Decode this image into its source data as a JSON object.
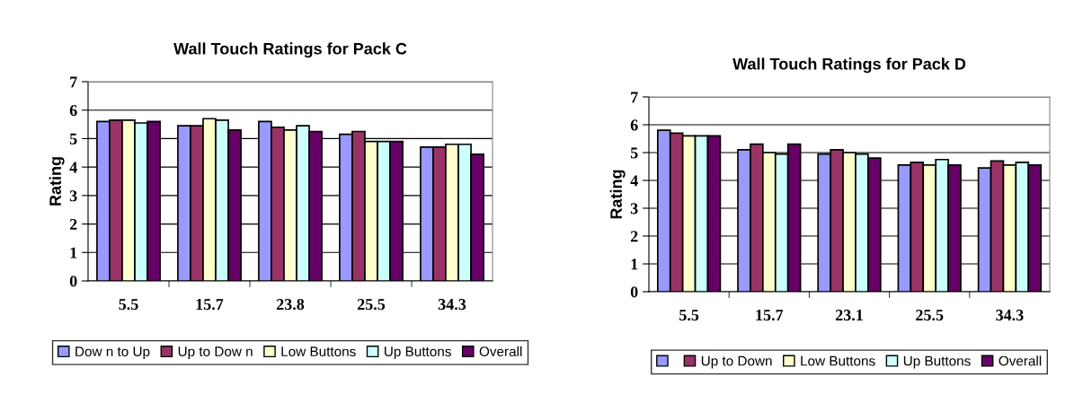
{
  "chart_data": [
    {
      "type": "bar",
      "title": "Wall Touch Ratings for Pack C",
      "ylabel": "Rating",
      "categories": [
        "5.5",
        "15.7",
        "23.8",
        "25.5",
        "34.3"
      ],
      "ylim": [
        0,
        7
      ],
      "yticks": [
        0,
        1,
        2,
        3,
        4,
        5,
        6,
        7
      ],
      "grid": "y",
      "legend": "bottom",
      "series": [
        {
          "name": "Dow n to Up",
          "color": "#9999ff",
          "values": [
            5.6,
            5.45,
            5.6,
            5.15,
            4.7
          ]
        },
        {
          "name": "Up to Dow n",
          "color": "#993366",
          "values": [
            5.65,
            5.45,
            5.4,
            5.25,
            4.7
          ]
        },
        {
          "name": "Low Buttons",
          "color": "#ffffcc",
          "values": [
            5.65,
            5.7,
            5.3,
            4.9,
            4.8
          ]
        },
        {
          "name": "Up Buttons",
          "color": "#ccffff",
          "values": [
            5.55,
            5.65,
            5.45,
            4.9,
            4.8
          ]
        },
        {
          "name": "Overall",
          "color": "#660066",
          "values": [
            5.6,
            5.3,
            5.25,
            4.9,
            4.45
          ]
        }
      ]
    },
    {
      "type": "bar",
      "title": "Wall Touch Ratings for Pack D",
      "ylabel": "Rating",
      "categories": [
        "5.5",
        "15.7",
        "23.1",
        "25.5",
        "34.3"
      ],
      "ylim": [
        0,
        7
      ],
      "yticks": [
        0,
        1,
        2,
        3,
        4,
        5,
        6,
        7
      ],
      "grid": "y",
      "legend": "bottom",
      "series": [
        {
          "color": "#9999ff",
          "values": [
            5.8,
            5.1,
            4.95,
            4.55,
            4.45
          ]
        },
        {
          "name": "Up to Down",
          "color": "#993366",
          "values": [
            5.7,
            5.3,
            5.1,
            4.65,
            4.7
          ]
        },
        {
          "name": "Low Buttons",
          "color": "#ffffcc",
          "values": [
            5.6,
            5.0,
            5.0,
            4.55,
            4.55
          ]
        },
        {
          "name": "Up Buttons",
          "color": "#ccffff",
          "values": [
            5.6,
            4.95,
            4.95,
            4.75,
            4.65
          ]
        },
        {
          "name": "Overall",
          "color": "#660066",
          "values": [
            5.6,
            5.3,
            4.8,
            4.55,
            4.55
          ]
        }
      ]
    }
  ]
}
